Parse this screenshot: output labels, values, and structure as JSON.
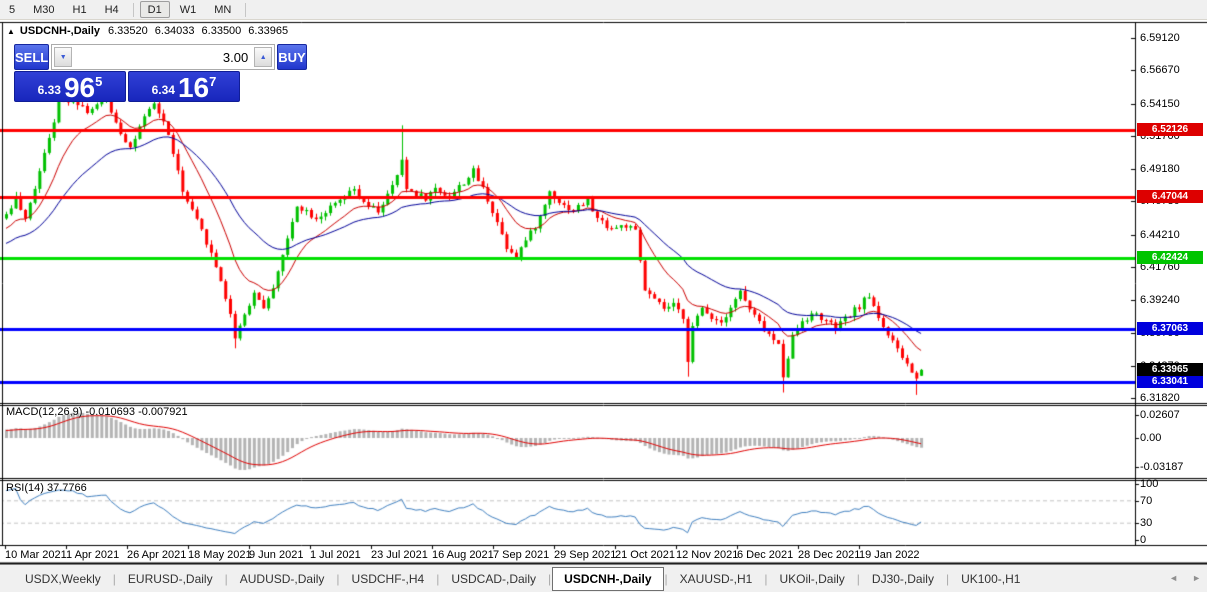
{
  "toolbar": {
    "timeframes": [
      "5",
      "M30",
      "H1",
      "H4",
      "D1",
      "W1",
      "MN"
    ],
    "active": "D1"
  },
  "chart": {
    "collapse_icon": "▲",
    "symbol_title": "USDCNH-,Daily",
    "ohlc": {
      "open": "6.33520",
      "high": "6.34033",
      "low": "6.33500",
      "close": "6.33965"
    }
  },
  "trade_panel": {
    "sell_label": "SELL",
    "buy_label": "BUY",
    "volume": "3.00",
    "spin_down_icon": "▼",
    "spin_up_icon": "▲",
    "sell_price": {
      "small": "6.33",
      "big": "96",
      "sup": "5"
    },
    "buy_price": {
      "small": "6.34",
      "big": "16",
      "sup": "7"
    }
  },
  "price_axis": {
    "ticks": [
      "6.59120",
      "6.56670",
      "6.54150",
      "6.51700",
      "6.49180",
      "6.46730",
      "6.44210",
      "6.41760",
      "6.39240",
      "6.36790",
      "6.34270",
      "6.31820"
    ]
  },
  "macd_panel": {
    "label": "MACD(12,26,9) -0.010693 -0.007921",
    "ticks": [
      {
        "label": "0.02607",
        "value": 0.02607
      },
      {
        "label": "0.00",
        "value": 0
      },
      {
        "label": "-0.03187",
        "value": -0.03187
      }
    ]
  },
  "rsi_panel": {
    "label": "RSI(14) 37.7766",
    "ticks": [
      {
        "label": "100",
        "value": 100
      },
      {
        "label": "70",
        "value": 70
      },
      {
        "label": "30",
        "value": 30
      },
      {
        "label": "0",
        "value": 0
      }
    ]
  },
  "tabs": {
    "items": [
      "USDX,Weekly",
      "EURUSD-,Daily",
      "AUDUSD-,Daily",
      "USDCHF-,H4",
      "USDCAD-,Daily",
      "USDCNH-,Daily",
      "XAUUSD-,H1",
      "UKOil-,Daily",
      "DJ30-,Daily",
      "UK100-,H1"
    ],
    "active": "USDCNH-,Daily",
    "scroll_left_icon": "◄",
    "scroll_right_icon": "►"
  },
  "chart_data": {
    "type": "candlestick",
    "symbol": "USDCNH-",
    "timeframe": "Daily",
    "title": "USDCNH-,Daily 6.33520 6.34033 6.33500 6.33965",
    "current_bar": {
      "open": 6.3352,
      "high": 6.34033,
      "low": 6.335,
      "close": 6.33965
    },
    "ylim": [
      6.3182,
      6.5912
    ],
    "y_ticks": [
      6.5912,
      6.5667,
      6.5415,
      6.517,
      6.4918,
      6.4673,
      6.4421,
      6.4176,
      6.3924,
      6.3679,
      6.3427,
      6.3182
    ],
    "x_dates": [
      "10 Mar 2021",
      "1 Apr 2021",
      "26 Apr 2021",
      "18 May 2021",
      "9 Jun 2021",
      "1 Jul 2021",
      "23 Jul 2021",
      "16 Aug 2021",
      "7 Sep 2021",
      "29 Sep 2021",
      "21 Oct 2021",
      "12 Nov 2021",
      "6 Dec 2021",
      "28 Dec 2021",
      "19 Jan 2022"
    ],
    "horizontal_levels": [
      {
        "price": 6.52126,
        "label": "6.52126",
        "line_color": "#ff0000",
        "tag_color": "#dd0000"
      },
      {
        "price": 6.47044,
        "label": "6.47044",
        "line_color": "#ff0000",
        "tag_color": "#dd0000"
      },
      {
        "price": 6.42424,
        "label": "6.42424",
        "line_color": "#00e000",
        "tag_color": "#00c400"
      },
      {
        "price": 6.37063,
        "label": "6.37063",
        "line_color": "#0000ff",
        "tag_color": "#0000dd"
      },
      {
        "price": 6.33041,
        "label": "6.33041",
        "line_color": "#0000ff",
        "tag_color": "#0000dd"
      }
    ],
    "current_price": {
      "price": 6.33965,
      "label": "6.33965",
      "tag_color": "#000000"
    },
    "colors": {
      "candle_up": "#00c000",
      "candle_down": "#fe0000",
      "ma_fast": "#cc0000",
      "ma_slow": "#000099",
      "macd_histogram": "#b4b4b4",
      "macd_signal": "#e00000",
      "rsi_line": "#4080c0",
      "rsi_levels": "#c4c4c4"
    },
    "moving_averages": [
      {
        "period": 12,
        "color_key": "ma_fast"
      },
      {
        "period": 30,
        "color_key": "ma_slow"
      }
    ],
    "macd": {
      "fast": 12,
      "slow": 26,
      "signal": 9,
      "current": -0.010693,
      "current_signal": -0.007921,
      "scale": [
        -0.03187,
        0.02607
      ]
    },
    "rsi": {
      "period": 14,
      "current": 37.7766,
      "levels": [
        70,
        30
      ]
    },
    "price_path": [
      [
        0,
        6.458
      ],
      [
        2,
        6.47
      ],
      [
        4,
        6.452
      ],
      [
        8,
        6.505
      ],
      [
        11,
        6.542
      ],
      [
        14,
        6.546
      ],
      [
        17,
        6.536
      ],
      [
        21,
        6.544
      ],
      [
        24,
        6.52
      ],
      [
        26,
        6.508
      ],
      [
        29,
        6.53
      ],
      [
        31,
        6.541
      ],
      [
        33,
        6.528
      ],
      [
        35,
        6.505
      ],
      [
        37,
        6.474
      ],
      [
        40,
        6.452
      ],
      [
        42,
        6.437
      ],
      [
        45,
        6.408
      ],
      [
        47,
        6.381
      ],
      [
        48,
        6.365
      ],
      [
        50,
        6.382
      ],
      [
        52,
        6.398
      ],
      [
        54,
        6.388
      ],
      [
        55,
        6.392
      ],
      [
        57,
        6.415
      ],
      [
        59,
        6.438
      ],
      [
        61,
        6.465
      ],
      [
        63,
        6.46
      ],
      [
        65,
        6.455
      ],
      [
        68,
        6.462
      ],
      [
        71,
        6.47
      ],
      [
        73,
        6.476
      ],
      [
        75,
        6.465
      ],
      [
        78,
        6.46
      ],
      [
        81,
        6.478
      ],
      [
        83,
        6.497
      ],
      [
        84,
        6.477
      ],
      [
        88,
        6.47
      ],
      [
        90,
        6.477
      ],
      [
        93,
        6.471
      ],
      [
        96,
        6.482
      ],
      [
        98,
        6.49
      ],
      [
        100,
        6.477
      ],
      [
        103,
        6.452
      ],
      [
        105,
        6.433
      ],
      [
        107,
        6.427
      ],
      [
        110,
        6.443
      ],
      [
        112,
        6.455
      ],
      [
        114,
        6.475
      ],
      [
        117,
        6.464
      ],
      [
        119,
        6.461
      ],
      [
        122,
        6.468
      ],
      [
        124,
        6.454
      ],
      [
        127,
        6.447
      ],
      [
        130,
        6.449
      ],
      [
        132,
        6.444
      ],
      [
        134,
        6.4
      ],
      [
        136,
        6.392
      ],
      [
        138,
        6.386
      ],
      [
        140,
        6.388
      ],
      [
        142,
        6.38
      ],
      [
        143,
        6.348
      ],
      [
        144,
        6.372
      ],
      [
        146,
        6.386
      ],
      [
        148,
        6.38
      ],
      [
        150,
        6.376
      ],
      [
        152,
        6.388
      ],
      [
        154,
        6.399
      ],
      [
        156,
        6.385
      ],
      [
        158,
        6.375
      ],
      [
        160,
        6.366
      ],
      [
        162,
        6.358
      ],
      [
        163,
        6.336
      ],
      [
        165,
        6.365
      ],
      [
        167,
        6.378
      ],
      [
        170,
        6.382
      ],
      [
        172,
        6.376
      ],
      [
        174,
        6.371
      ],
      [
        176,
        6.378
      ],
      [
        179,
        6.388
      ],
      [
        181,
        6.396
      ],
      [
        183,
        6.38
      ],
      [
        185,
        6.366
      ],
      [
        187,
        6.354
      ],
      [
        189,
        6.344
      ],
      [
        191,
        6.332
      ],
      [
        192,
        6.3397
      ]
    ],
    "spikes": [
      {
        "i": 83,
        "high": 6.525
      },
      {
        "i": 48,
        "low": 6.356
      },
      {
        "i": 143,
        "low": 6.3345
      },
      {
        "i": 163,
        "low": 6.3225
      },
      {
        "i": 191,
        "low": 6.3207
      }
    ]
  }
}
